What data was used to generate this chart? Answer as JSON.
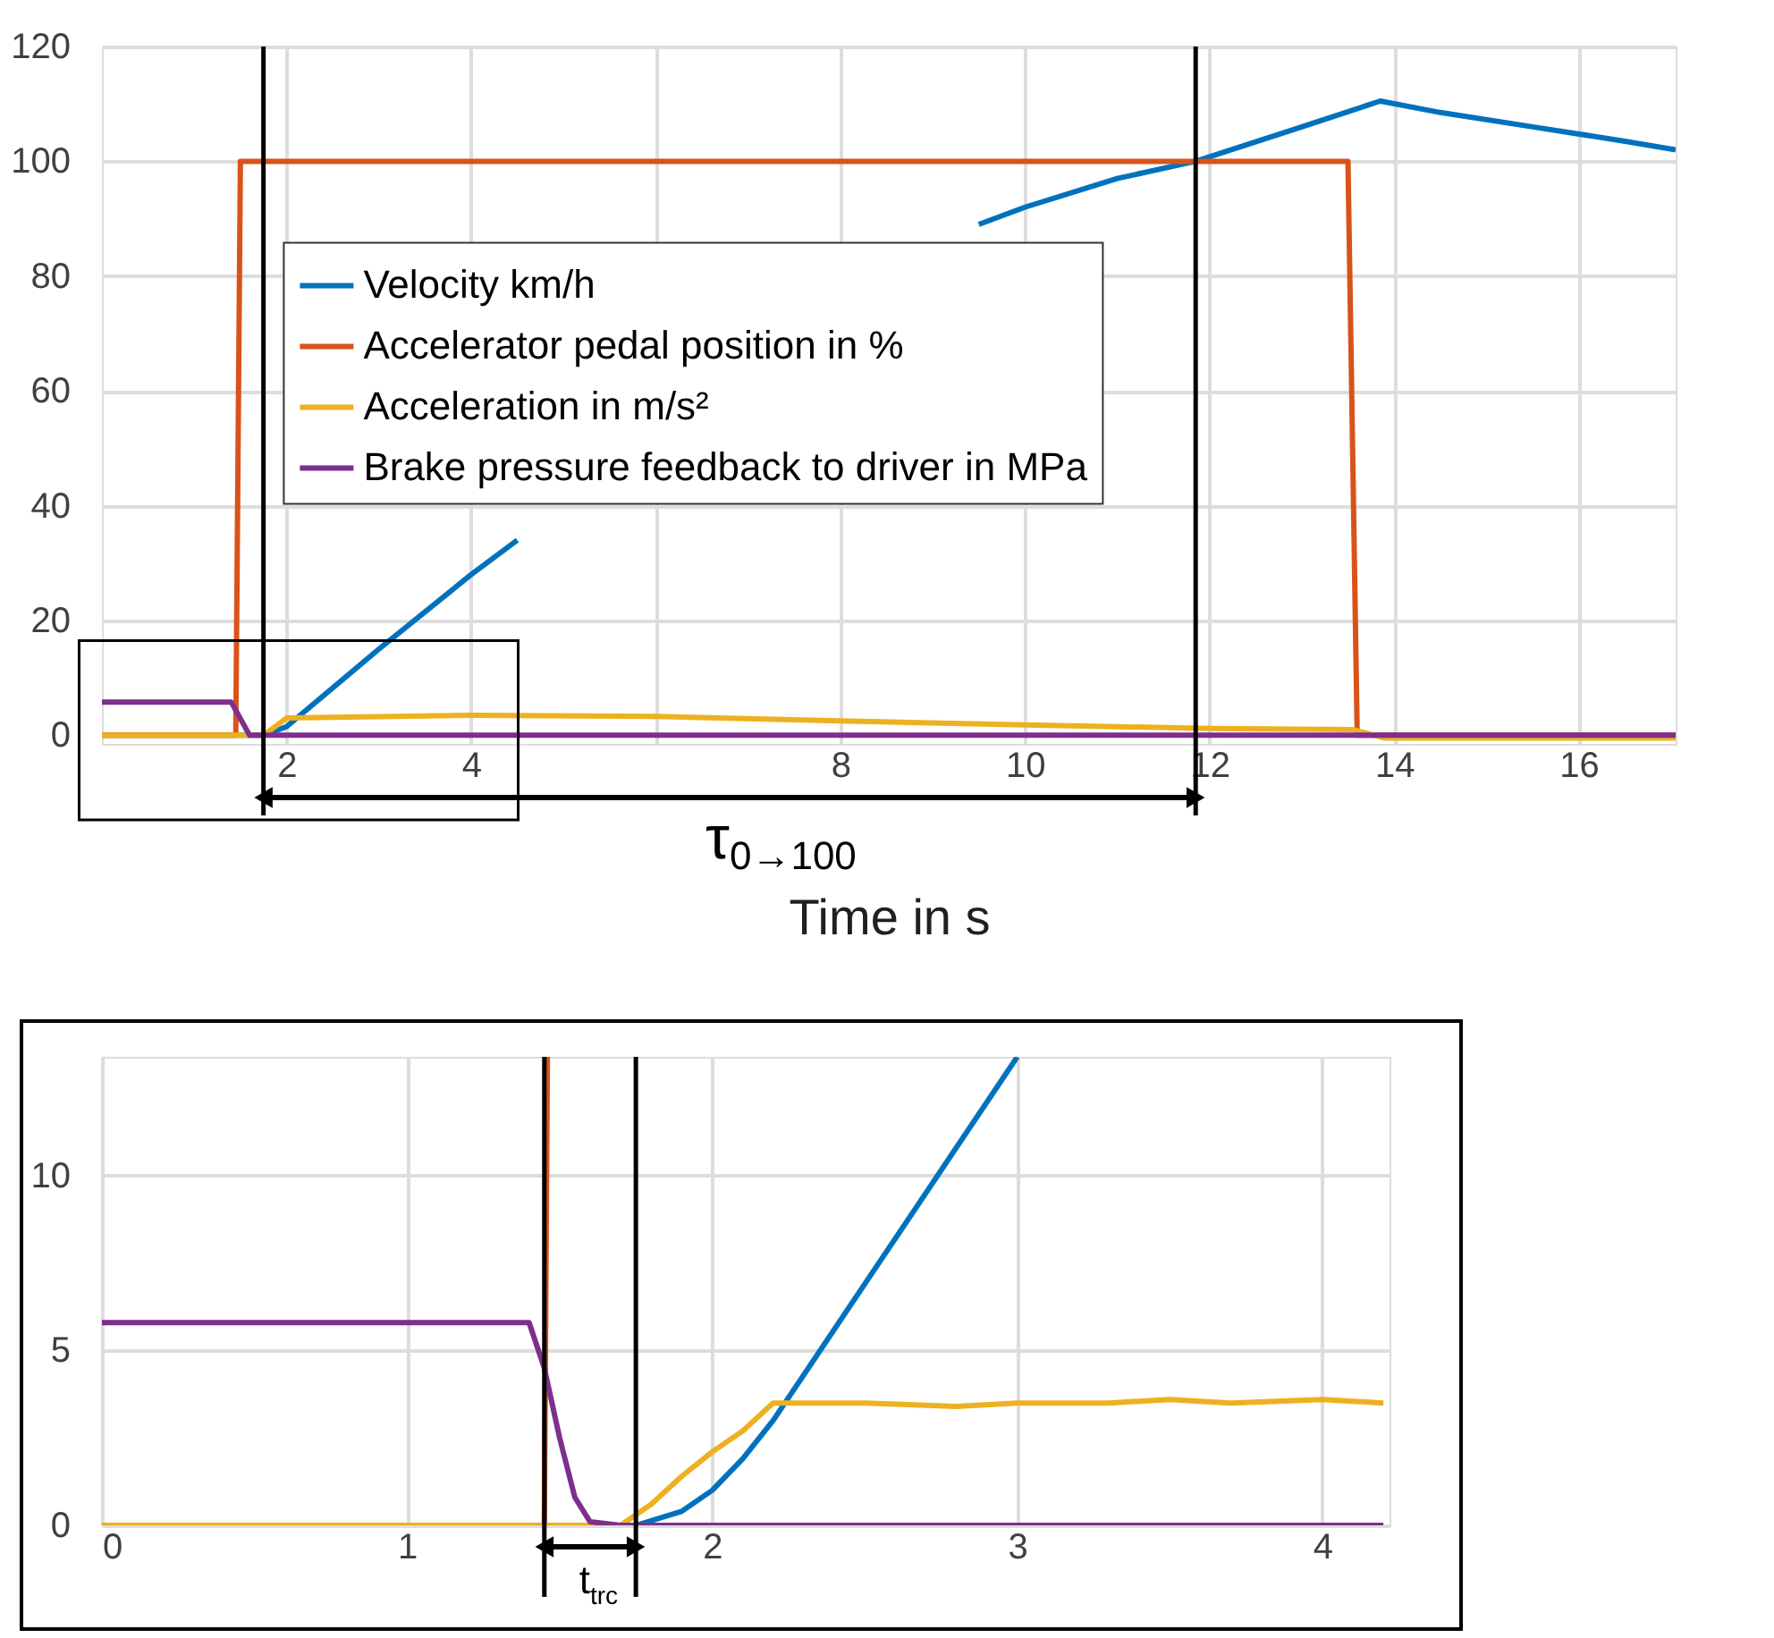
{
  "chart_data": [
    {
      "type": "line",
      "xlabel": "Time in s",
      "xlim": [
        0,
        17.05
      ],
      "ylim": [
        -1.5,
        120
      ],
      "xticks": [
        2,
        4,
        {
          "value": 6,
          "label": null
        },
        8,
        10,
        12,
        14,
        16
      ],
      "yticks": [
        0,
        20,
        40,
        60,
        80,
        100,
        120
      ],
      "grid": true,
      "legend": "left",
      "line_style": "solid",
      "series": [
        {
          "name": "Velocity km/h",
          "color": "#0072bd",
          "x": [
            0,
            1.75,
            2,
            3,
            4,
            4.5,
            6,
            7,
            8.5,
            9.5,
            10,
            11,
            11.85,
            13,
            13.85,
            14.5,
            15.5,
            16.5,
            17.05
          ],
          "values": [
            0,
            0,
            1.5,
            15,
            28,
            34,
            null,
            null,
            null,
            89,
            92,
            97,
            100,
            106,
            110.5,
            108.5,
            106,
            103.5,
            102
          ]
        },
        {
          "name": "Accelerator pedal position in %",
          "color": "#d95319",
          "x": [
            0,
            1.45,
            1.5,
            13.5,
            13.6,
            17.05
          ],
          "values": [
            0,
            0,
            100,
            100,
            0,
            0
          ]
        },
        {
          "name": "Acceleration in m/s²",
          "color": "#edb120",
          "x": [
            0,
            1.75,
            2,
            4,
            6,
            8,
            10,
            12,
            13.55,
            13.9,
            17.05
          ],
          "values": [
            0,
            0,
            3,
            3.5,
            3.3,
            2.5,
            1.8,
            1.2,
            1,
            -0.5,
            -0.5
          ]
        },
        {
          "name": "Brake pressure feedback to driver in MPa",
          "color": "#7e2f8e",
          "x": [
            0,
            1.4,
            1.6,
            17.05
          ],
          "values": [
            5.8,
            5.8,
            0,
            0
          ]
        }
      ],
      "ref_lines": [
        {
          "axis": "x",
          "value": 1.75,
          "color": "#000000"
        },
        {
          "axis": "x",
          "value": 11.85,
          "color": "#000000"
        }
      ],
      "annotations": [
        "τ$_{0→100}$"
      ]
    },
    {
      "type": "line",
      "xlim": [
        0,
        4.22
      ],
      "ylim": [
        0,
        13.4
      ],
      "xticks": [
        0,
        1,
        2,
        3,
        4
      ],
      "yticks": [
        0,
        5,
        10
      ],
      "grid": true,
      "line_style": "solid",
      "series": [
        {
          "color": "#0072bd",
          "x": [
            0,
            1.75,
            1.9,
            2.0,
            2.1,
            2.2,
            2.5,
            3.0
          ],
          "values": [
            0,
            0,
            0.4,
            1.0,
            1.9,
            3.0,
            6.9,
            13.4
          ]
        },
        {
          "color": "#d95319",
          "x": [
            0,
            1.45,
            1.46
          ],
          "values": [
            0,
            0,
            13.4
          ]
        },
        {
          "color": "#edb120",
          "x": [
            0,
            1.7,
            1.8,
            1.9,
            2.0,
            2.1,
            2.2,
            2.5,
            2.8,
            3.0,
            3.3,
            3.5,
            3.7,
            4.0,
            4.2
          ],
          "values": [
            0,
            0,
            0.6,
            1.4,
            2.1,
            2.7,
            3.5,
            3.5,
            3.4,
            3.5,
            3.5,
            3.6,
            3.5,
            3.6,
            3.5
          ]
        },
        {
          "color": "#7e2f8e",
          "x": [
            0,
            1.4,
            1.45,
            1.5,
            1.55,
            1.6,
            1.7,
            4.2
          ],
          "values": [
            5.8,
            5.8,
            4.5,
            2.5,
            0.8,
            0.1,
            0,
            0
          ]
        }
      ],
      "ref_lines": [
        {
          "axis": "x",
          "value": 1.45,
          "color": "#000000"
        },
        {
          "axis": "x",
          "value": 1.75,
          "color": "#000000"
        }
      ],
      "annotations": [
        "t$_{trc}$"
      ]
    }
  ]
}
